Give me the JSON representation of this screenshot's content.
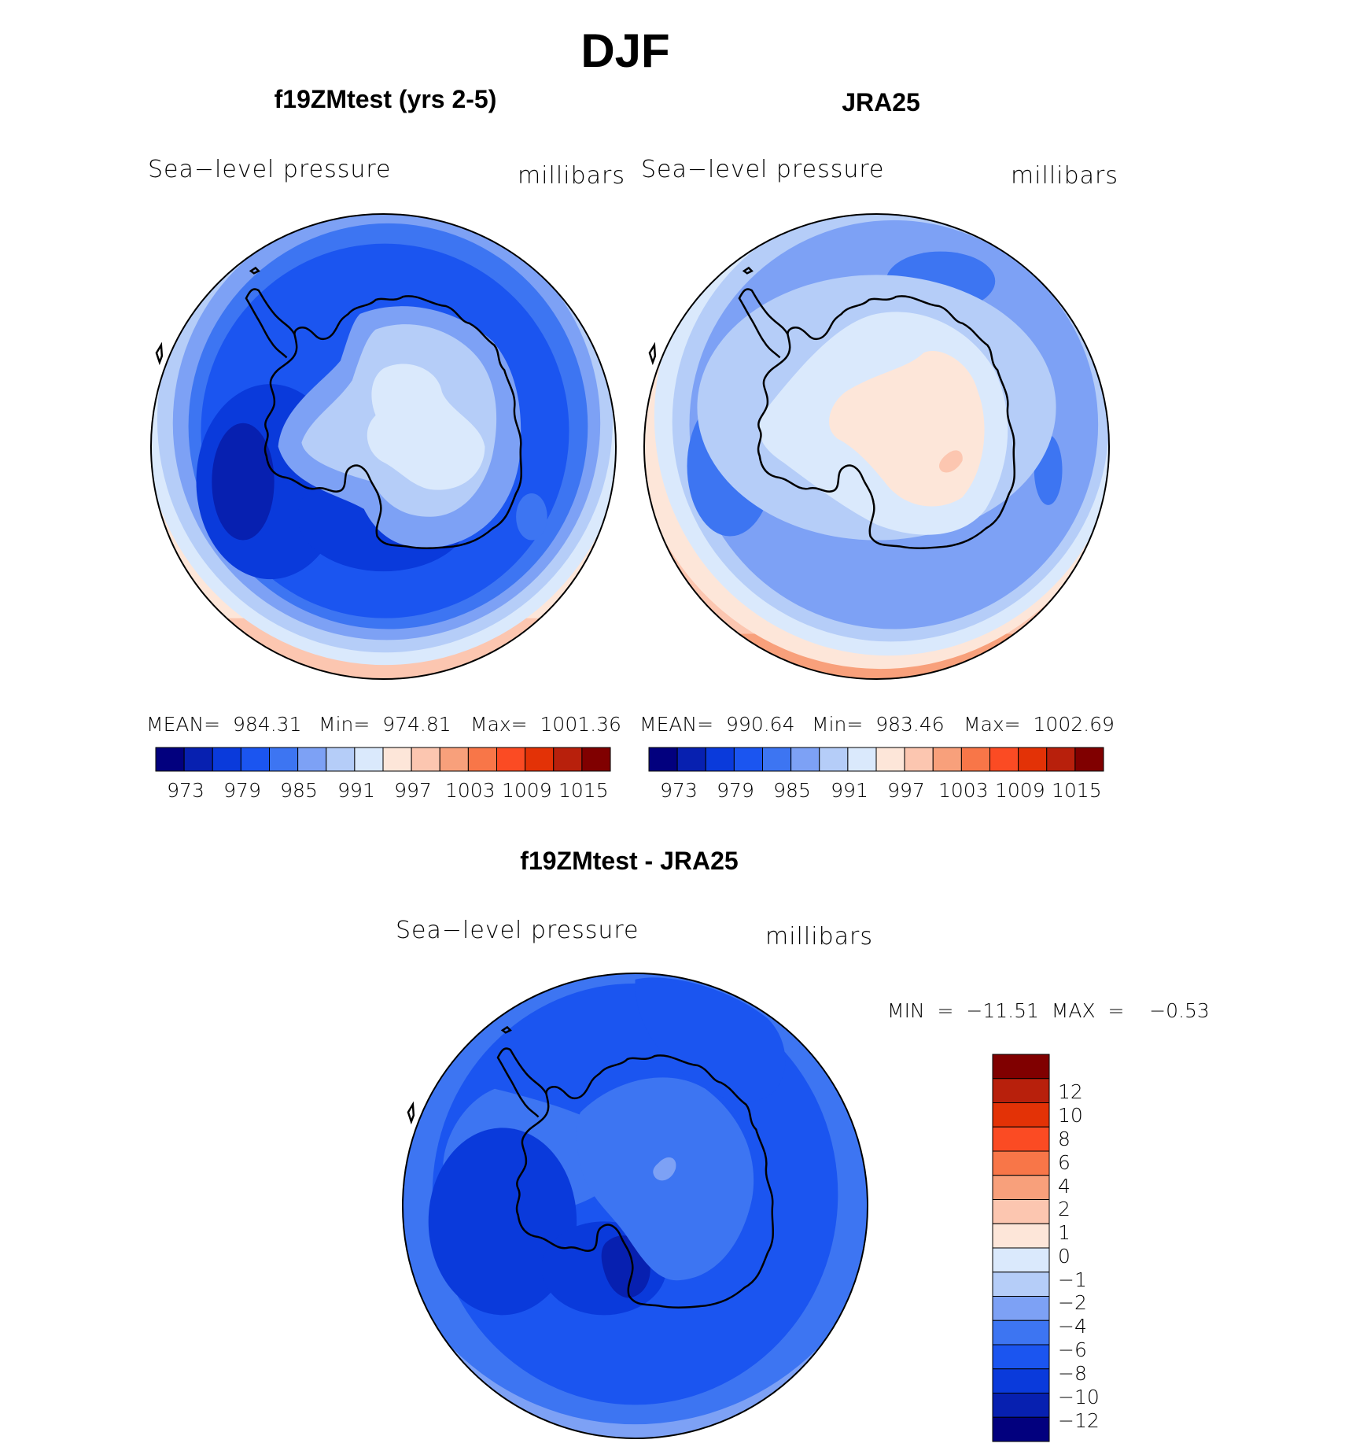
{
  "title": "DJF",
  "colors": {
    "palette": [
      "#02007e",
      "#0720b0",
      "#0a3adb",
      "#1b55f0",
      "#3d75f2",
      "#7da1f5",
      "#b5cdf8",
      "#dae9fc",
      "#fde6d9",
      "#fcc6b0",
      "#f8a07b",
      "#f87648",
      "#fb4b23",
      "#e33206",
      "#b8200c",
      "#800000"
    ],
    "coast": "#000000"
  },
  "panels": [
    {
      "title": "f19ZMtest (yrs 2-5)",
      "left_label": "Sea−level pressure",
      "right_label": "millibars",
      "stats": {
        "mean": "MEAN=  984.31",
        "min": "Min=  974.81",
        "max": "Max=  1001.36"
      },
      "colorbar_ticks": [
        "973",
        "979",
        "985",
        "991",
        "997",
        "1003",
        "1009",
        "1015"
      ]
    },
    {
      "title": "JRA25",
      "left_label": "Sea−level pressure",
      "right_label": "millibars",
      "stats": {
        "mean": "MEAN=  990.64",
        "min": "Min=  983.46",
        "max": "Max=  1002.69"
      },
      "colorbar_ticks": [
        "973",
        "979",
        "985",
        "991",
        "997",
        "1003",
        "1009",
        "1015"
      ]
    }
  ],
  "diff": {
    "title": "f19ZMtest - JRA25",
    "left_label": "Sea−level pressure",
    "right_label": "millibars",
    "minmax": "MIN  =  −11.51  MAX  =    −0.53",
    "colorbar_ticks": [
      "12",
      "10",
      "8",
      "6",
      "4",
      "2",
      "1",
      "0",
      "−1",
      "−2",
      "−4",
      "−6",
      "−8",
      "−10",
      "−12"
    ]
  }
}
